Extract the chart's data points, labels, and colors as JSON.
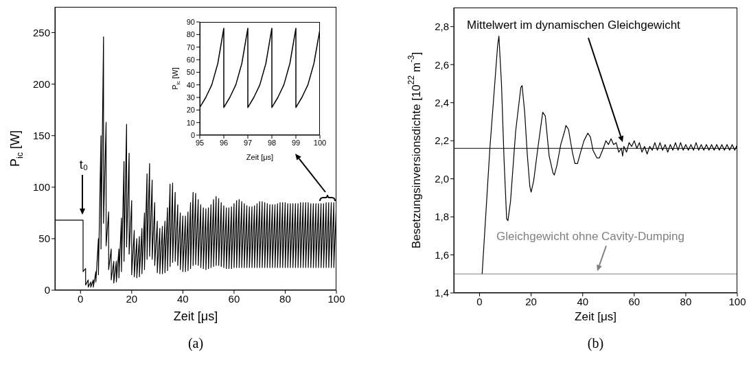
{
  "chart_data": [
    {
      "type": "line",
      "xlabel": "Zeit [μs]",
      "ylabel": "P$_{ic}$ [W]",
      "xlim": [
        -10,
        100
      ],
      "ylim": [
        0,
        275
      ],
      "xticks": [
        0,
        20,
        40,
        60,
        80,
        100
      ],
      "yticks": [
        0,
        50,
        100,
        150,
        200,
        250
      ],
      "series": [
        {
          "color": "#000000",
          "x": [
            -10,
            1,
            1,
            2,
            2,
            3,
            3,
            4,
            4,
            5,
            5,
            6,
            6,
            7,
            7,
            8,
            8,
            9,
            9,
            10,
            10,
            11,
            11,
            12,
            12,
            13,
            13,
            14,
            14,
            15,
            15,
            16,
            16,
            17,
            17,
            18,
            18,
            19,
            19,
            20,
            20,
            21,
            21,
            22,
            22,
            23,
            23,
            24,
            24,
            25,
            25,
            26,
            26,
            27,
            27,
            28,
            28,
            29,
            29,
            30,
            30,
            31,
            31,
            32,
            32,
            33,
            33,
            34,
            34,
            35,
            35,
            36,
            36,
            37,
            37,
            38,
            38,
            39,
            39,
            40,
            40,
            41,
            41,
            42,
            42,
            43,
            43,
            44,
            44,
            45,
            45,
            46,
            46,
            47,
            47,
            48,
            48,
            49,
            49,
            50,
            50,
            51,
            51,
            52,
            52,
            53,
            53,
            54,
            54,
            55,
            55,
            56,
            56,
            57,
            57,
            58,
            58,
            59,
            59,
            60,
            60,
            61,
            61,
            62,
            62,
            63,
            63,
            64,
            64,
            65,
            65,
            66,
            66,
            67,
            67,
            68,
            68,
            69,
            69,
            70,
            70,
            71,
            71,
            72,
            72,
            73,
            73,
            74,
            74,
            75,
            75,
            76,
            76,
            77,
            77,
            78,
            78,
            79,
            79,
            80,
            80,
            81,
            81,
            82,
            82,
            83,
            83,
            84,
            84,
            85,
            85,
            86,
            86,
            87,
            87,
            88,
            88,
            89,
            89,
            90,
            90,
            91,
            91,
            92,
            92,
            93,
            93,
            94,
            94,
            95,
            95,
            96,
            96,
            97,
            97,
            98,
            98,
            99,
            99,
            100
          ],
          "values": [
            68,
            68,
            18,
            21,
            5,
            10,
            3,
            8,
            3,
            10,
            3,
            18,
            8,
            50,
            15,
            150,
            40,
            246,
            65,
            163,
            43,
            76,
            20,
            40,
            10,
            28,
            7,
            28,
            8,
            40,
            12,
            70,
            18,
            125,
            28,
            161,
            42,
            133,
            35,
            87,
            15,
            58,
            13,
            50,
            12,
            52,
            13,
            60,
            16,
            75,
            20,
            113,
            30,
            123,
            33,
            107,
            30,
            85,
            24,
            67,
            17,
            60,
            16,
            62,
            16,
            67,
            17,
            80,
            19,
            103,
            23,
            104,
            27,
            95,
            28,
            83,
            24,
            75,
            20,
            72,
            18,
            72,
            18,
            76,
            19,
            85,
            21,
            95,
            24,
            94,
            25,
            88,
            24,
            83,
            22,
            80,
            21,
            79,
            20,
            80,
            21,
            83,
            22,
            88,
            23,
            91,
            24,
            89,
            24,
            85,
            23,
            82,
            22,
            80,
            21,
            80,
            21,
            81,
            21,
            84,
            22,
            87,
            22,
            88,
            22,
            86,
            22,
            84,
            22,
            82,
            22,
            81,
            22,
            81,
            22,
            82,
            22,
            84,
            22,
            86,
            22,
            86,
            22,
            85,
            22,
            84,
            22,
            83,
            22,
            83,
            22,
            83,
            22,
            84,
            22,
            85,
            22,
            85,
            22,
            85,
            22,
            84,
            22,
            84,
            22,
            84,
            22,
            84,
            22,
            84,
            22,
            85,
            22,
            85,
            22,
            85,
            22,
            85,
            22,
            84,
            22,
            84,
            22,
            84,
            22,
            84,
            22,
            84,
            22,
            84,
            22,
            85,
            22,
            85,
            22,
            85,
            22,
            85,
            22,
            84
          ]
        }
      ],
      "annotations": [
        "t₀",
        "(a)"
      ]
    },
    {
      "type": "line",
      "xlabel": "Zeit [μs]",
      "ylabel": "P$_{ic}$ [W]",
      "xlim": [
        95,
        100
      ],
      "ylim": [
        0,
        90
      ],
      "xticks": [
        95,
        96,
        97,
        98,
        99,
        100
      ],
      "yticks": [
        0,
        10,
        20,
        30,
        40,
        50,
        60,
        70,
        80,
        90
      ],
      "series": [
        {
          "color": "#000000",
          "x": [
            95,
            95.25,
            95.5,
            95.75,
            96,
            96,
            96.25,
            96.5,
            96.75,
            97,
            97,
            97.25,
            97.5,
            97.75,
            98,
            98,
            98.25,
            98.5,
            98.75,
            99,
            99,
            99.25,
            99.5,
            99.75,
            100
          ],
          "values": [
            22,
            30,
            40,
            57,
            85,
            22,
            30,
            40,
            57,
            85,
            22,
            30,
            40,
            57,
            85,
            22,
            30,
            40,
            57,
            85,
            22,
            30,
            40,
            57,
            84
          ]
        }
      ]
    },
    {
      "type": "line",
      "xlabel": "Zeit [μs]",
      "ylabel": "Besetzungsinversionsdichte [10$^{22}$ m$^{-3}$]",
      "xlim": [
        -10,
        100
      ],
      "ylim": [
        1.4,
        2.9
      ],
      "xticks": [
        0,
        20,
        40,
        60,
        80,
        100
      ],
      "yticks": [
        {
          "value": 1.4,
          "label": "1,4"
        },
        {
          "value": 1.6,
          "label": "1,6"
        },
        {
          "value": 1.8,
          "label": "1,8"
        },
        {
          "value": 2.0,
          "label": "2,0"
        },
        {
          "value": 2.2,
          "label": "2,2"
        },
        {
          "value": 2.4,
          "label": "2,4"
        },
        {
          "value": 2.6,
          "label": "2,6"
        },
        {
          "value": 2.8,
          "label": "2,8"
        }
      ],
      "series": [
        {
          "color": "#000000",
          "x": [
            1,
            4,
            7,
            7.5,
            8.5,
            9.5,
            10.5,
            11,
            12,
            14,
            16,
            16.5,
            17.5,
            18.5,
            19.5,
            20,
            21,
            22.5,
            24,
            24.5,
            25.5,
            27,
            28.5,
            29,
            30,
            31.5,
            33,
            33.5,
            34.5,
            36,
            37,
            38,
            39,
            40.5,
            42,
            43,
            44,
            45.5,
            46.5,
            48,
            49,
            50,
            51,
            52,
            53,
            54,
            55,
            55.5,
            56,
            57,
            58,
            59,
            60,
            61,
            62,
            63,
            64,
            65,
            66,
            67,
            68,
            69,
            70,
            71,
            72,
            73,
            74,
            75,
            76,
            77,
            78,
            79,
            80,
            81,
            82,
            83,
            84,
            85,
            86,
            87,
            88,
            89,
            90,
            91,
            92,
            93,
            94,
            95,
            96,
            97,
            98,
            99,
            100
          ],
          "values": [
            1.5,
            2.16,
            2.7,
            2.75,
            2.5,
            2.1,
            1.79,
            1.78,
            1.88,
            2.25,
            2.48,
            2.49,
            2.35,
            2.13,
            1.96,
            1.93,
            1.99,
            2.15,
            2.3,
            2.35,
            2.33,
            2.12,
            2.03,
            2.02,
            2.07,
            2.18,
            2.25,
            2.28,
            2.26,
            2.14,
            2.08,
            2.08,
            2.13,
            2.2,
            2.24,
            2.22,
            2.15,
            2.11,
            2.11,
            2.16,
            2.2,
            2.18,
            2.21,
            2.18,
            2.19,
            2.14,
            2.16,
            2.12,
            2.17,
            2.14,
            2.19,
            2.17,
            2.2,
            2.16,
            2.19,
            2.14,
            2.17,
            2.13,
            2.17,
            2.15,
            2.19,
            2.15,
            2.19,
            2.15,
            2.18,
            2.14,
            2.18,
            2.15,
            2.19,
            2.15,
            2.19,
            2.15,
            2.18,
            2.15,
            2.18,
            2.15,
            2.19,
            2.15,
            2.18,
            2.15,
            2.18,
            2.15,
            2.18,
            2.15,
            2.18,
            2.15,
            2.18,
            2.15,
            2.18,
            2.15,
            2.18,
            2.15,
            2.18
          ]
        }
      ],
      "ref_lines": [
        {
          "axis": "y",
          "value": 2.16,
          "label": "Mittelwert im dynamischen Gleichgewicht",
          "color": "#000000"
        },
        {
          "axis": "y",
          "value": 1.5,
          "label": "Gleichgewicht ohne Cavity-Dumping",
          "color": "#808080"
        }
      ],
      "annotations": [
        "(b)"
      ]
    }
  ]
}
